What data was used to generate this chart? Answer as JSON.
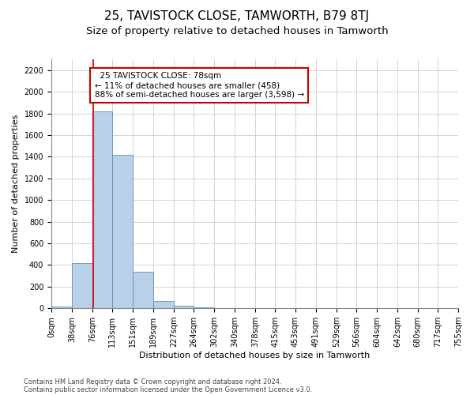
{
  "title": "25, TAVISTOCK CLOSE, TAMWORTH, B79 8TJ",
  "subtitle": "Size of property relative to detached houses in Tamworth",
  "xlabel": "Distribution of detached houses by size in Tamworth",
  "ylabel": "Number of detached properties",
  "footnote1": "Contains HM Land Registry data © Crown copyright and database right 2024.",
  "footnote2": "Contains public sector information licensed under the Open Government Licence v3.0.",
  "bin_edges": [
    0,
    38,
    76,
    113,
    151,
    189,
    227,
    264,
    302,
    340,
    378,
    415,
    453,
    491,
    529,
    566,
    604,
    642,
    680,
    717,
    755
  ],
  "bar_heights": [
    15,
    420,
    1820,
    1420,
    340,
    70,
    25,
    10,
    3,
    1,
    0,
    0,
    0,
    0,
    0,
    0,
    0,
    0,
    0,
    0
  ],
  "bar_color": "#b8d0e8",
  "bar_edge_color": "#6090b8",
  "property_size": 78,
  "property_line_color": "#cc0000",
  "annotation_text": "  25 TAVISTOCK CLOSE: 78sqm\n← 11% of detached houses are smaller (458)\n88% of semi-detached houses are larger (3,598) →",
  "annotation_box_color": "#ffffff",
  "annotation_box_edge_color": "#cc0000",
  "ylim": [
    0,
    2300
  ],
  "yticks": [
    0,
    200,
    400,
    600,
    800,
    1000,
    1200,
    1400,
    1600,
    1800,
    2000,
    2200
  ],
  "background_color": "#ffffff",
  "grid_color": "#cccccc",
  "title_fontsize": 11,
  "subtitle_fontsize": 9.5,
  "axis_label_fontsize": 8,
  "tick_fontsize": 7,
  "annotation_fontsize": 7.5,
  "footnote_fontsize": 6
}
